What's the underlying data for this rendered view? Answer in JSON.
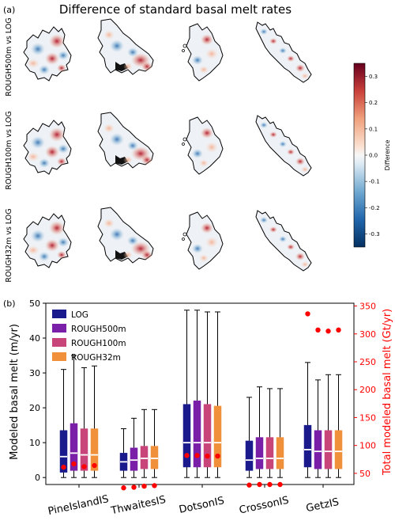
{
  "panel_a": {
    "label": "(a)",
    "title": "Difference of standard basal melt rates",
    "row_labels": [
      "ROUGH500m vs LOG",
      "ROUGH100m vs LOG",
      "ROUGH32m vs LOG"
    ],
    "colorbar": {
      "label": "Difference",
      "ticks": [
        "0.3",
        "0.2",
        "0.1",
        "0.0",
        "-0.1",
        "-0.2",
        "-0.3"
      ],
      "range": [
        -0.35,
        0.35
      ],
      "colormap": "RdBu_r"
    }
  },
  "panel_b": {
    "label": "(b)"
  },
  "colors": {
    "LOG": "#1a1a8c",
    "ROUGH500m": "#7a1fa8",
    "ROUGH100m": "#c8457a",
    "ROUGH32m": "#f0903a",
    "total_melt": "#ff0000"
  },
  "chart_data": {
    "type": "box",
    "categories": [
      "PineIslandIS",
      "ThwaitesIS",
      "DotsonIS",
      "CrossonIS",
      "GetzIS"
    ],
    "ylabel": "Modeled basal melt (m/yr)",
    "ylim": [
      -2,
      50
    ],
    "yticks": [
      "0",
      "10",
      "20",
      "30",
      "40",
      "50"
    ],
    "y2label": "Total modeled basal melt (Gt/yr)",
    "y2lim": [
      30,
      355
    ],
    "y2ticks": [
      "50",
      "100",
      "150",
      "200",
      "250",
      "300",
      "350"
    ],
    "legend_position": "top-left",
    "series": [
      {
        "name": "LOG",
        "boxes": [
          {
            "whislo": 0,
            "q1": 1.5,
            "med": 6,
            "q3": 13.5,
            "whishi": 31
          },
          {
            "whislo": 0,
            "q1": 2,
            "med": 4.5,
            "q3": 7,
            "whishi": 14
          },
          {
            "whislo": 0,
            "q1": 3,
            "med": 10,
            "q3": 21,
            "whishi": 48
          },
          {
            "whislo": 0,
            "q1": 2,
            "med": 5,
            "q3": 10.5,
            "whishi": 23
          },
          {
            "whislo": 0,
            "q1": 3,
            "med": 8,
            "q3": 15,
            "whishi": 33
          }
        ]
      },
      {
        "name": "ROUGH500m",
        "boxes": [
          {
            "whislo": 0,
            "q1": 2,
            "med": 7,
            "q3": 15.5,
            "whishi": 35
          },
          {
            "whislo": 0,
            "q1": 2,
            "med": 5,
            "q3": 8.5,
            "whishi": 17
          },
          {
            "whislo": 0,
            "q1": 3,
            "med": 10,
            "q3": 22,
            "whishi": 48
          },
          {
            "whislo": 0,
            "q1": 2.5,
            "med": 5.5,
            "q3": 11.5,
            "whishi": 26
          },
          {
            "whislo": 0,
            "q1": 2.5,
            "med": 7.5,
            "q3": 13.5,
            "whishi": 28
          }
        ]
      },
      {
        "name": "ROUGH100m",
        "boxes": [
          {
            "whislo": 0,
            "q1": 2,
            "med": 6.5,
            "q3": 14,
            "whishi": 31.5
          },
          {
            "whislo": 0,
            "q1": 2.5,
            "med": 5.5,
            "q3": 9,
            "whishi": 19.5
          },
          {
            "whislo": 0,
            "q1": 3,
            "med": 10,
            "q3": 21,
            "whishi": 47.5
          },
          {
            "whislo": 0,
            "q1": 2.5,
            "med": 5.5,
            "q3": 11.5,
            "whishi": 25.5
          },
          {
            "whislo": 0,
            "q1": 2.5,
            "med": 7.5,
            "q3": 13.5,
            "whishi": 29.5
          }
        ]
      },
      {
        "name": "ROUGH32m",
        "boxes": [
          {
            "whislo": 0,
            "q1": 2,
            "med": 6.5,
            "q3": 14,
            "whishi": 32
          },
          {
            "whislo": 0,
            "q1": 2.5,
            "med": 5.5,
            "q3": 9,
            "whishi": 19.5
          },
          {
            "whislo": 0,
            "q1": 3,
            "med": 10,
            "q3": 20.5,
            "whishi": 47.5
          },
          {
            "whislo": 0,
            "q1": 2.5,
            "med": 5.5,
            "q3": 11.5,
            "whishi": 25.5
          },
          {
            "whislo": 0,
            "q1": 2.5,
            "med": 7.5,
            "q3": 13.5,
            "whishi": 29.5
          }
        ]
      }
    ],
    "total_melt_gt_per_yr": [
      [
        61,
        67,
        62,
        64
      ],
      [
        24,
        25,
        27,
        28
      ],
      [
        82,
        82,
        81,
        81
      ],
      [
        29,
        30,
        30,
        30
      ],
      [
        336,
        307,
        305,
        307
      ]
    ]
  }
}
